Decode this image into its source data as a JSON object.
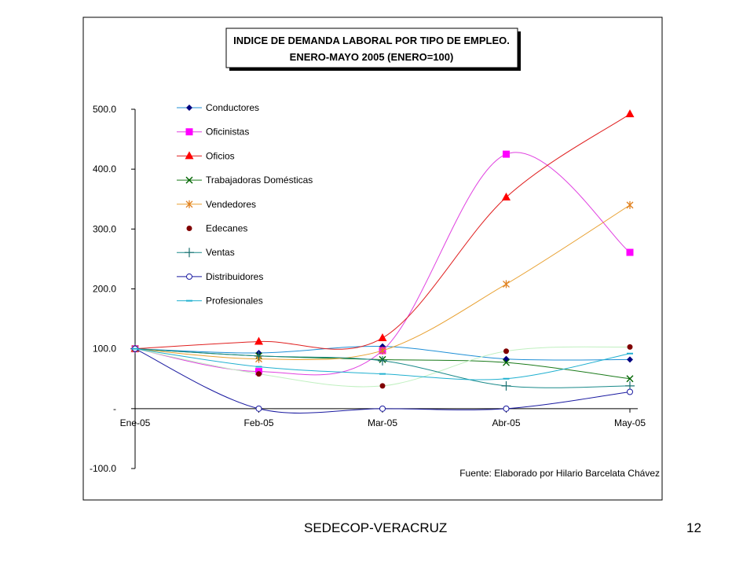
{
  "footer": {
    "left": "SEDECOP-VERACRUZ",
    "page_number": "12"
  },
  "chart_data": {
    "type": "line",
    "title": [
      "INDICE DE DEMANDA LABORAL POR TIPO DE EMPLEO.",
      "ENERO-MAYO 2005 (ENERO=100)"
    ],
    "categories": [
      "Ene-05",
      "Feb-05",
      "Mar-05",
      "Abr-05",
      "May-05"
    ],
    "ylim": [
      -100,
      500
    ],
    "yticks": [
      500,
      400,
      300,
      200,
      100,
      0,
      -100
    ],
    "ytick_labels": [
      "500.0",
      "400.0",
      "300.0",
      "200.0",
      "100.0",
      "-",
      "-100.0"
    ],
    "xlabel": "",
    "ylabel": "",
    "legend_position": "top-left",
    "grid": false,
    "source_note": "Fuente: Elaborado por Hilario Barcelata Chávez",
    "series": [
      {
        "name": "Conductores",
        "values": [
          100,
          93,
          104,
          83,
          82
        ],
        "color": "#1f8fd6",
        "marker_color": "#000080",
        "marker": "diamond"
      },
      {
        "name": "Oficinistas",
        "values": [
          100,
          62,
          97,
          425,
          261
        ],
        "color": "#e040e0",
        "marker_color": "#ff00ff",
        "marker": "square"
      },
      {
        "name": "Oficios",
        "values": [
          100,
          112,
          118,
          353,
          492
        ],
        "color": "#e02020",
        "marker_color": "#ff0000",
        "marker": "triangle"
      },
      {
        "name": "Trabajadoras Domésticas",
        "values": [
          100,
          88,
          82,
          77,
          50
        ],
        "color": "#1a7a1a",
        "marker_color": "#006400",
        "marker": "x"
      },
      {
        "name": "Vendedores",
        "values": [
          100,
          83,
          97,
          208,
          340
        ],
        "color": "#e8a030",
        "marker_color": "#e08020",
        "marker": "star"
      },
      {
        "name": "Edecanes",
        "values": [
          100,
          58,
          38,
          96,
          103
        ],
        "color": "#c0f0c0",
        "marker_color": "#800000",
        "marker": "dot"
      },
      {
        "name": "Ventas",
        "values": [
          100,
          88,
          80,
          38,
          38
        ],
        "color": "#1a8a8a",
        "marker_color": "#1a7070",
        "marker": "plus"
      },
      {
        "name": "Distribuidores",
        "values": [
          100,
          0,
          0,
          0,
          28
        ],
        "color": "#1a1aa0",
        "marker_color": "#1a1aa0",
        "marker": "circle"
      },
      {
        "name": "Profesionales",
        "values": [
          100,
          70,
          58,
          50,
          92
        ],
        "color": "#20b0d0",
        "marker_color": "#20b0d0",
        "marker": "dash"
      }
    ]
  }
}
